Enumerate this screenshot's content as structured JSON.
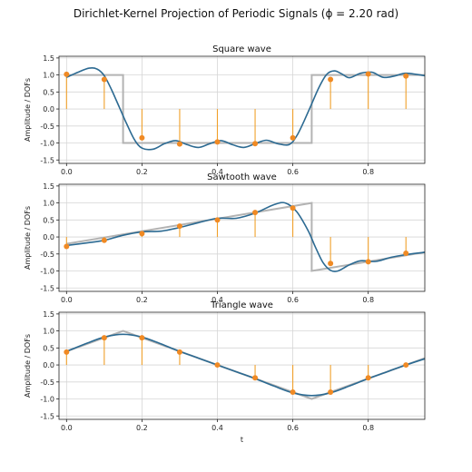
{
  "figure_title": "Dirichlet-Kernel Projection of Periodic Signals (ϕ = 2.20 rad)",
  "colors": {
    "reconstruction": "#2c6a92",
    "target": "#b3b3b3",
    "samples": "#f08a24",
    "stems": "#f0a02a",
    "grid": "#d6d6d6"
  },
  "chart_data": [
    {
      "type": "line",
      "title": "Square wave",
      "ylabel": "Amplitude / DOFs",
      "xlabel": "",
      "xlim": [
        -0.02,
        0.95
      ],
      "ylim": [
        -1.6,
        1.55
      ],
      "x_ticks": [
        "0.0",
        "0.2",
        "0.4",
        "0.6",
        "0.8"
      ],
      "x_tick_values": [
        0.0,
        0.2,
        0.4,
        0.6,
        0.8
      ],
      "y_ticks": [
        "1.5",
        "1.0",
        "0.5",
        "0.0",
        "-0.5",
        "-1.0",
        "-1.5"
      ],
      "y_tick_values": [
        1.5,
        1.0,
        0.5,
        0.0,
        -0.5,
        -1.0,
        -1.5
      ],
      "grid": true,
      "target": {
        "x": [
          0.0,
          0.15,
          0.15,
          0.65,
          0.65,
          0.95
        ],
        "y": [
          1.0,
          1.0,
          -1.0,
          -1.0,
          1.0,
          1.0
        ]
      },
      "reconstruction": {
        "x": [
          0.0,
          0.03,
          0.06,
          0.08,
          0.1,
          0.12,
          0.14,
          0.16,
          0.18,
          0.2,
          0.23,
          0.26,
          0.29,
          0.32,
          0.35,
          0.38,
          0.41,
          0.44,
          0.47,
          0.5,
          0.53,
          0.56,
          0.59,
          0.61,
          0.63,
          0.65,
          0.67,
          0.69,
          0.71,
          0.73,
          0.75,
          0.78,
          0.81,
          0.84,
          0.87,
          0.9,
          0.95
        ],
        "y": [
          0.93,
          1.08,
          1.2,
          1.18,
          0.98,
          0.55,
          0.05,
          -0.45,
          -0.9,
          -1.15,
          -1.18,
          -1.02,
          -0.93,
          -1.05,
          -1.13,
          -1.02,
          -0.93,
          -1.05,
          -1.13,
          -1.02,
          -0.92,
          -1.02,
          -1.05,
          -0.8,
          -0.35,
          0.15,
          0.65,
          1.02,
          1.12,
          1.03,
          0.92,
          1.05,
          1.08,
          0.93,
          0.97,
          1.05,
          0.98
        ]
      },
      "samples": {
        "x": [
          0.0,
          0.1,
          0.2,
          0.3,
          0.4,
          0.5,
          0.6,
          0.7,
          0.8,
          0.9
        ],
        "y": [
          1.02,
          0.87,
          -0.85,
          -1.03,
          -0.97,
          -1.02,
          -0.85,
          0.87,
          1.03,
          0.97
        ]
      }
    },
    {
      "type": "line",
      "title": "Sawtooth wave",
      "ylabel": "Amplitude / DOFs",
      "xlabel": "",
      "xlim": [
        -0.02,
        0.95
      ],
      "ylim": [
        -1.6,
        1.55
      ],
      "x_ticks": [
        "0.0",
        "0.2",
        "0.4",
        "0.6",
        "0.8"
      ],
      "x_tick_values": [
        0.0,
        0.2,
        0.4,
        0.6,
        0.8
      ],
      "y_ticks": [
        "1.5",
        "1.0",
        "0.5",
        "0.0",
        "-0.5",
        "-1.0",
        "-1.5"
      ],
      "y_tick_values": [
        1.5,
        1.0,
        0.5,
        0.0,
        -0.5,
        -1.0,
        -1.5
      ],
      "grid": true,
      "target": {
        "x": [
          0.0,
          0.65,
          0.65,
          0.95
        ],
        "y": [
          -0.2,
          1.0,
          -1.0,
          -0.45
        ]
      },
      "reconstruction": {
        "x": [
          0.0,
          0.05,
          0.1,
          0.15,
          0.2,
          0.25,
          0.3,
          0.35,
          0.4,
          0.45,
          0.5,
          0.55,
          0.58,
          0.61,
          0.64,
          0.66,
          0.68,
          0.7,
          0.72,
          0.75,
          0.78,
          0.82,
          0.86,
          0.9,
          0.95
        ],
        "y": [
          -0.25,
          -0.18,
          -0.1,
          0.05,
          0.15,
          0.17,
          0.28,
          0.42,
          0.55,
          0.55,
          0.7,
          0.95,
          1.0,
          0.75,
          0.2,
          -0.3,
          -0.75,
          -0.98,
          -1.0,
          -0.82,
          -0.7,
          -0.72,
          -0.6,
          -0.52,
          -0.45
        ]
      },
      "samples": {
        "x": [
          0.0,
          0.1,
          0.2,
          0.3,
          0.4,
          0.5,
          0.6,
          0.7,
          0.8,
          0.9
        ],
        "y": [
          -0.28,
          -0.1,
          0.1,
          0.32,
          0.5,
          0.72,
          0.85,
          -0.78,
          -0.73,
          -0.48
        ]
      }
    },
    {
      "type": "line",
      "title": "Triangle wave",
      "ylabel": "Amplitude / DOFs",
      "xlabel": "t",
      "xlim": [
        -0.02,
        0.95
      ],
      "ylim": [
        -1.6,
        1.55
      ],
      "x_ticks": [
        "0.0",
        "0.2",
        "0.4",
        "0.6",
        "0.8"
      ],
      "x_tick_values": [
        0.0,
        0.2,
        0.4,
        0.6,
        0.8
      ],
      "y_ticks": [
        "1.5",
        "1.0",
        "0.5",
        "0.0",
        "-0.5",
        "-1.0",
        "-1.5"
      ],
      "y_tick_values": [
        1.5,
        1.0,
        0.5,
        0.0,
        -0.5,
        -1.0,
        -1.5
      ],
      "grid": true,
      "target": {
        "x": [
          0.0,
          0.15,
          0.65,
          0.95
        ],
        "y": [
          0.4,
          1.0,
          -1.0,
          0.2
        ]
      },
      "reconstruction": {
        "x": [
          0.0,
          0.05,
          0.1,
          0.15,
          0.2,
          0.25,
          0.3,
          0.35,
          0.4,
          0.45,
          0.5,
          0.55,
          0.6,
          0.65,
          0.7,
          0.75,
          0.8,
          0.85,
          0.9,
          0.95
        ],
        "y": [
          0.4,
          0.62,
          0.82,
          0.9,
          0.82,
          0.62,
          0.4,
          0.2,
          0.0,
          -0.2,
          -0.4,
          -0.62,
          -0.82,
          -0.9,
          -0.82,
          -0.62,
          -0.4,
          -0.2,
          0.0,
          0.18
        ]
      },
      "samples": {
        "x": [
          0.0,
          0.1,
          0.2,
          0.3,
          0.4,
          0.5,
          0.6,
          0.7,
          0.8,
          0.9
        ],
        "y": [
          0.38,
          0.8,
          0.8,
          0.38,
          0.0,
          -0.38,
          -0.8,
          -0.8,
          -0.38,
          0.0
        ]
      }
    }
  ]
}
